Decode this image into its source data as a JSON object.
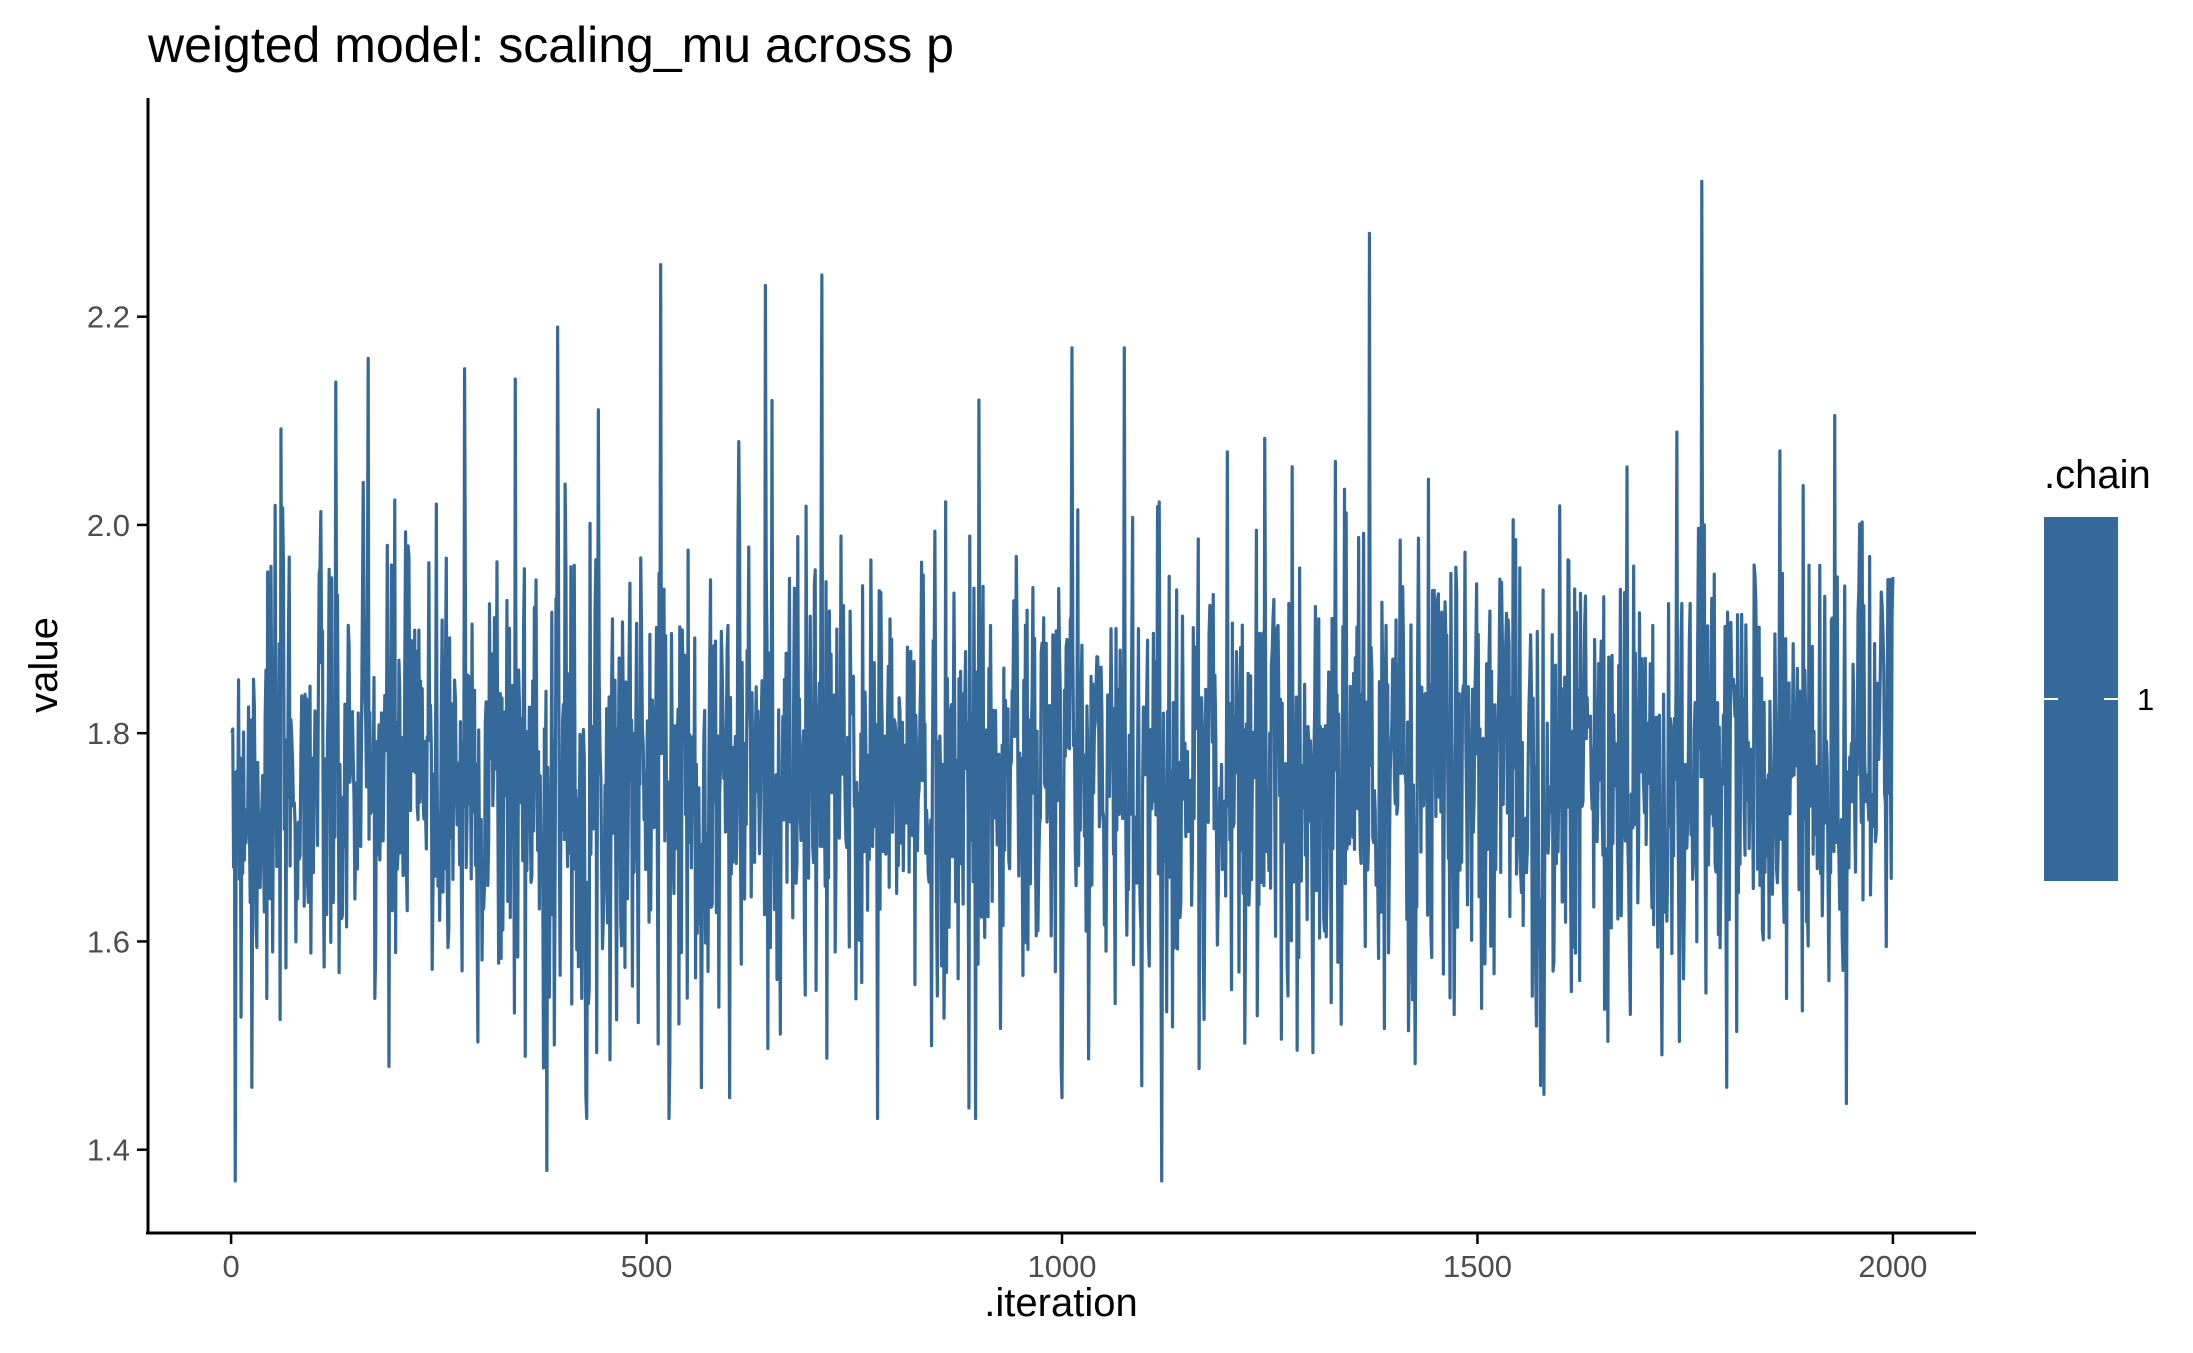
{
  "chart_data": {
    "type": "line",
    "title": "weigted model: scaling_mu across p",
    "xlabel": ".iteration",
    "ylabel": "value",
    "xlim": [
      -100,
      2100
    ],
    "ylim": [
      1.32,
      2.41
    ],
    "x_ticks": [
      0,
      500,
      1000,
      1500,
      2000
    ],
    "x_tick_labels": [
      "0",
      "500",
      "1000",
      "1500",
      "2000"
    ],
    "y_ticks": [
      1.4,
      1.6,
      1.8,
      2.0,
      2.2
    ],
    "y_tick_labels": [
      "1.4",
      "1.6",
      "1.8",
      "2.0",
      "2.2"
    ],
    "grid": false,
    "legend": {
      "title": ".chain",
      "placement": "right",
      "entries": [
        {
          "label": "1",
          "color": "#35699A"
        }
      ]
    },
    "series": [
      {
        "color": "#35699A",
        "n_points": 2000,
        "summary": {
          "center": 1.76,
          "sd": 0.12,
          "min": 1.37,
          "max": 2.33
        },
        "x": [
          1,
          5,
          10,
          25,
          50,
          75,
          100,
          130,
          165,
          190,
          220,
          247,
          281,
          300,
          342,
          380,
          393,
          450,
          517,
          560,
          600,
          611,
          643,
          700,
          711,
          750,
          800,
          888,
          900,
          950,
          1000,
          1012,
          1050,
          1075,
          1100,
          1120,
          1150,
          1200,
          1250,
          1300,
          1350,
          1370,
          1400,
          1450,
          1500,
          1550,
          1600,
          1650,
          1700,
          1750,
          1770,
          1800,
          1850,
          1900,
          1950,
          2000
        ],
        "values": [
          1.8,
          1.37,
          1.66,
          1.46,
          1.59,
          1.73,
          1.76,
          1.57,
          2.16,
          1.48,
          1.79,
          2.02,
          2.15,
          1.71,
          2.14,
          1.38,
          2.19,
          1.75,
          2.25,
          1.77,
          1.45,
          2.08,
          2.23,
          1.69,
          2.24,
          1.73,
          1.8,
          1.44,
          2.12,
          1.74,
          1.45,
          2.17,
          1.72,
          2.17,
          1.76,
          1.37,
          1.78,
          1.73,
          1.8,
          1.75,
          1.7,
          2.28,
          1.76,
          1.72,
          1.78,
          1.74,
          1.8,
          1.73,
          1.75,
          1.77,
          2.33,
          1.46,
          1.76,
          1.73,
          1.79,
          1.95
        ]
      }
    ]
  }
}
